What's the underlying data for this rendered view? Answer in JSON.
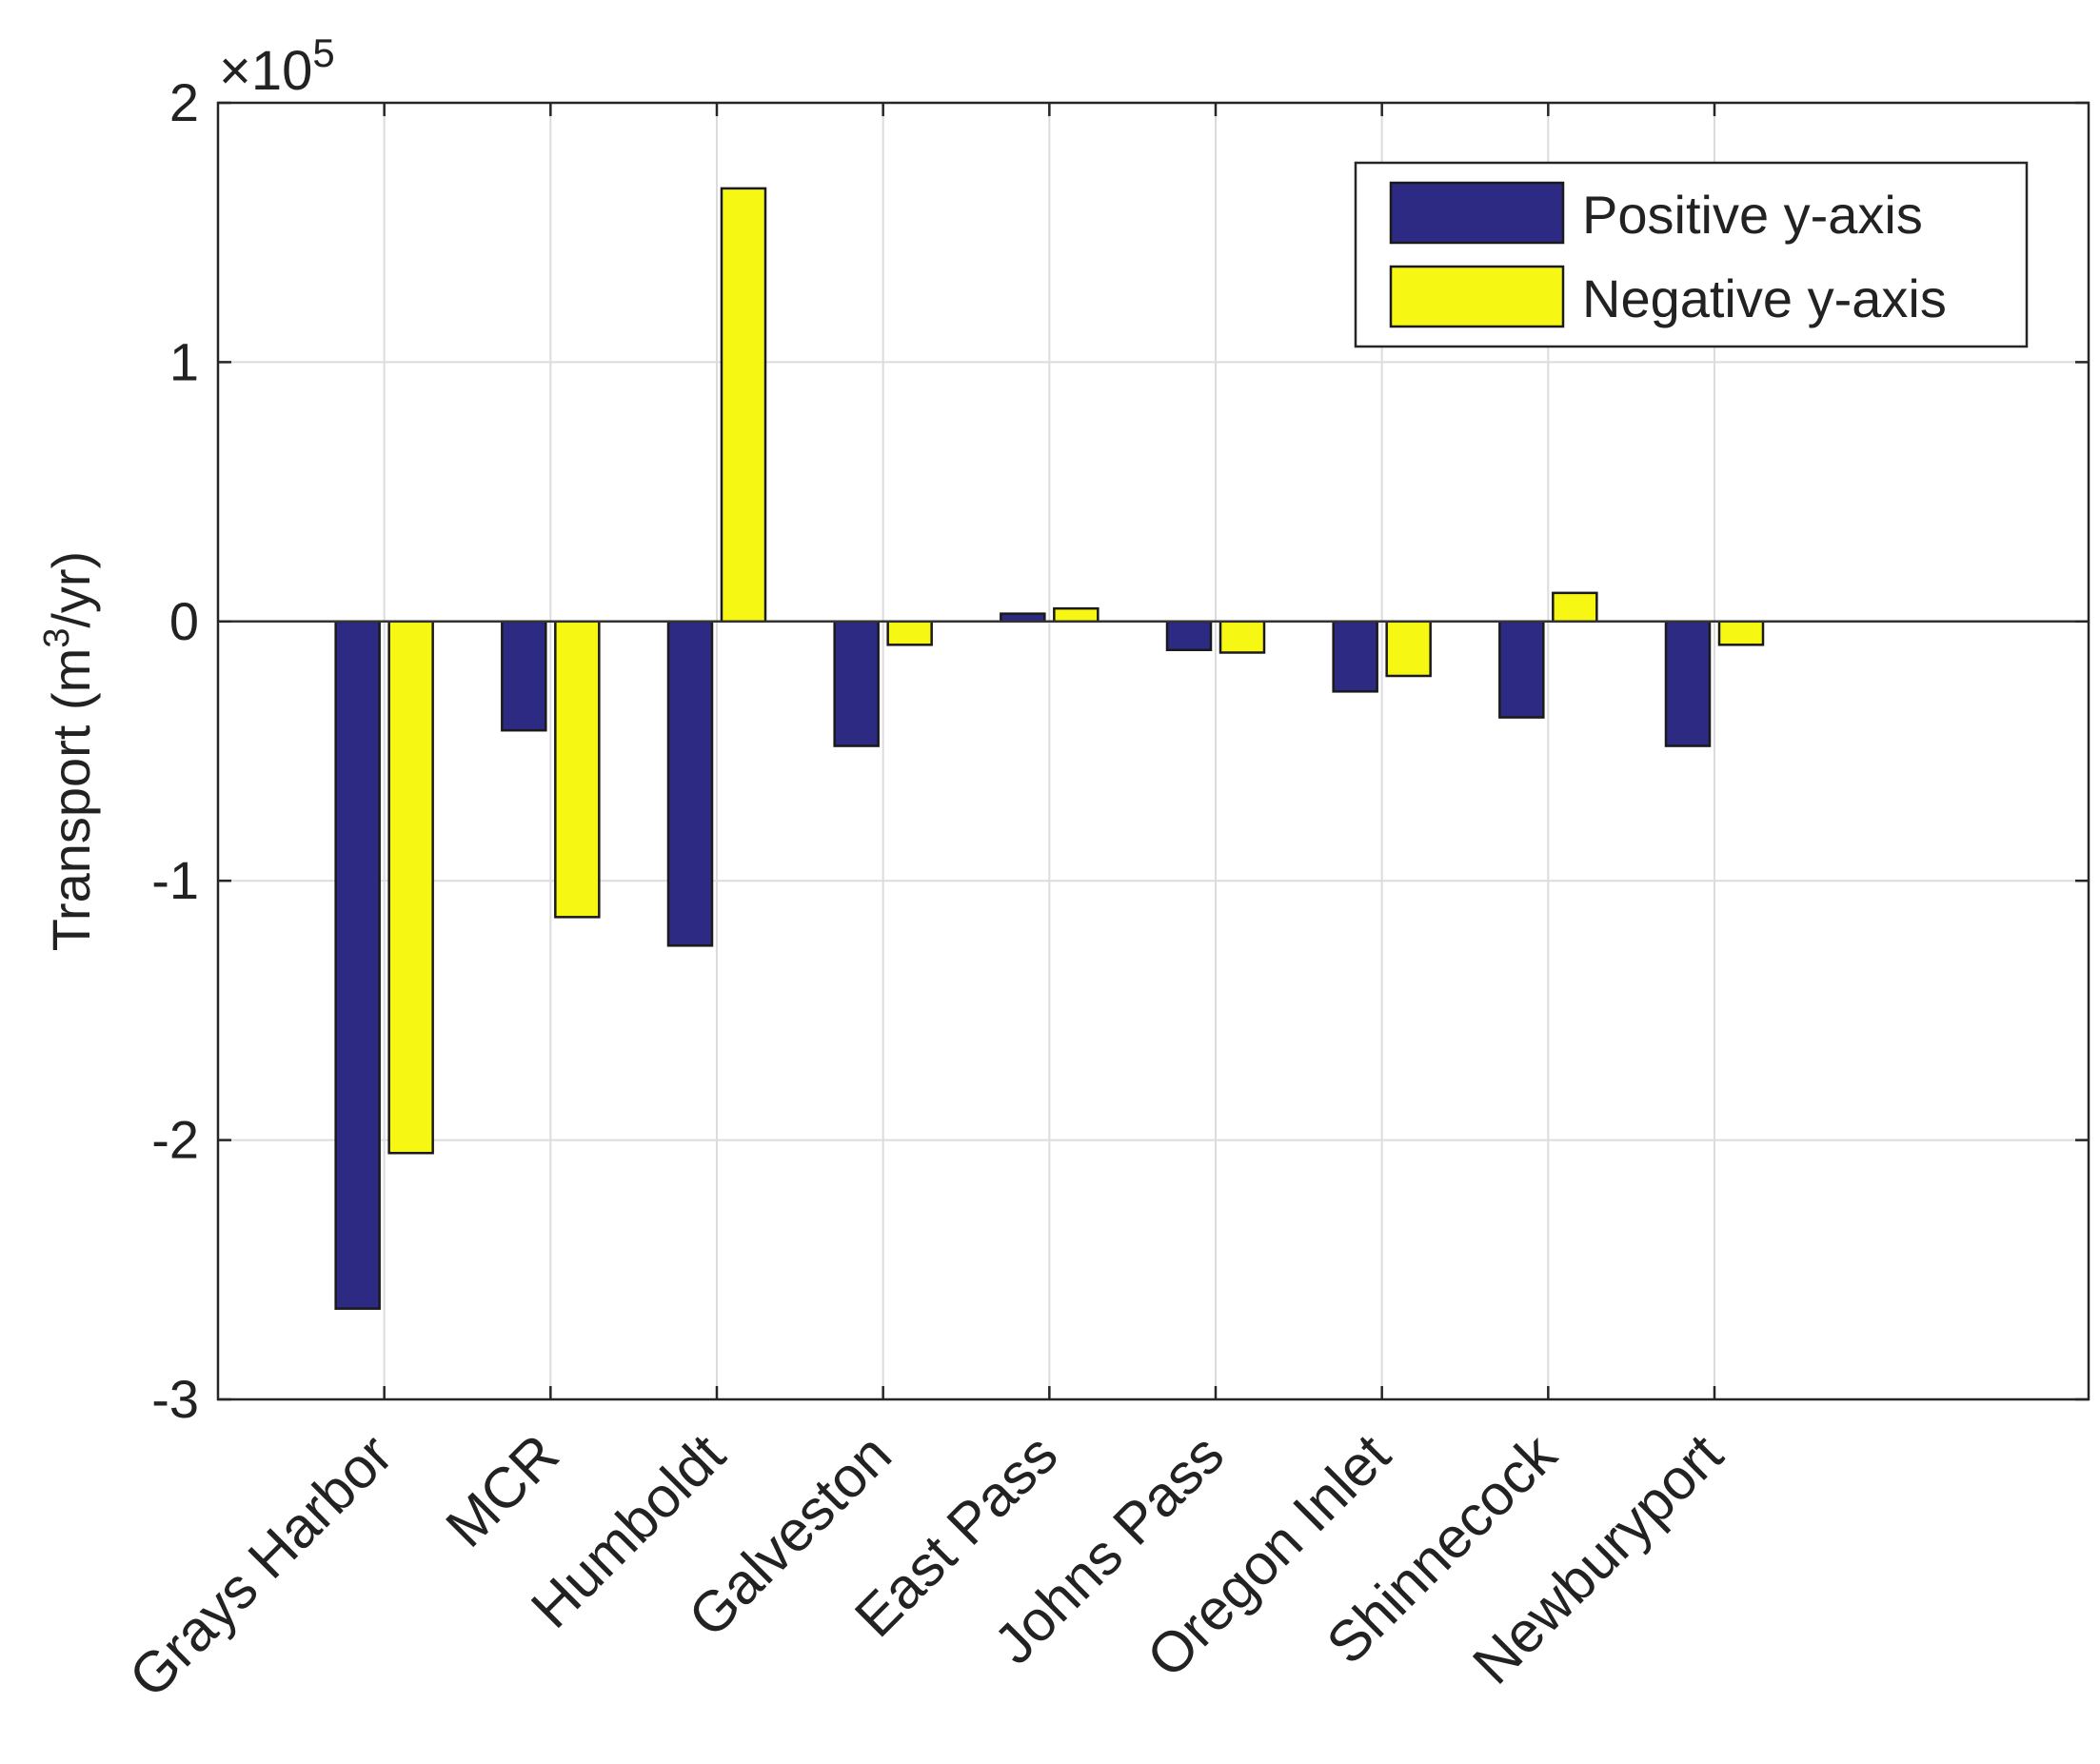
{
  "chart_data": {
    "type": "bar",
    "title": "",
    "xlabel": "",
    "ylabel": "Transport (m",
    "ylabel_sup": "3",
    "ylabel_tail": "/yr)",
    "exponent_times": "×10",
    "exponent_power": "5",
    "ylim": [
      -3,
      2
    ],
    "yticks": [
      2,
      1,
      0,
      -1,
      -2,
      -3
    ],
    "ytick_labels": [
      "2",
      "1",
      "0",
      "-1",
      "-2",
      "-3"
    ],
    "grid": true,
    "legend_position": "top-right",
    "categories": [
      "Grays Harbor",
      "MCR",
      "Humboldt",
      "Galveston",
      "East Pass",
      "Johns Pass",
      "Oregon Inlet",
      "Shinnecock",
      "Newburyport"
    ],
    "series": [
      {
        "name": "Positive y-axis",
        "color": "#2c2a83",
        "values": [
          -2.65,
          -0.42,
          -1.25,
          -0.48,
          0.03,
          -0.11,
          -0.27,
          -0.37,
          -0.48
        ]
      },
      {
        "name": "Negative y-axis",
        "color": "#f7f714",
        "values": [
          -2.05,
          -1.14,
          1.67,
          -0.09,
          0.05,
          -0.12,
          -0.21,
          0.11,
          -0.09
        ]
      }
    ]
  }
}
